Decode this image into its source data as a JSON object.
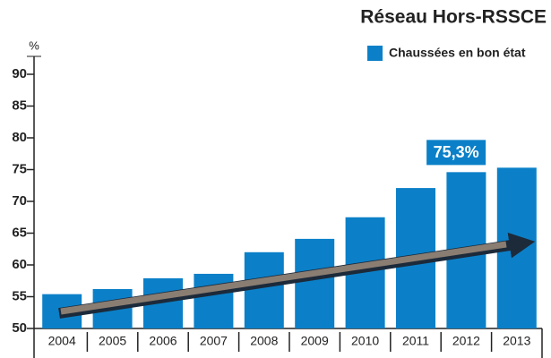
{
  "chart_data": {
    "type": "bar",
    "title": "Réseau Hors-RSSCE",
    "y_label": "%",
    "categories": [
      "2004",
      "2005",
      "2006",
      "2007",
      "2008",
      "2009",
      "2010",
      "2011",
      "2012",
      "2013"
    ],
    "series": [
      {
        "name": "Chaussées en bon état",
        "color": "#0b80c8",
        "values": [
          55.4,
          56.2,
          57.9,
          58.6,
          62.0,
          64.1,
          67.5,
          72.1,
          74.6,
          75.3
        ],
        "value_labels": [
          null,
          null,
          null,
          null,
          null,
          null,
          null,
          null,
          null,
          "75,3%"
        ]
      }
    ],
    "ylim": [
      50,
      90
    ],
    "yticks": [
      50,
      55,
      60,
      65,
      70,
      75,
      80,
      85,
      90
    ],
    "grid": false
  }
}
